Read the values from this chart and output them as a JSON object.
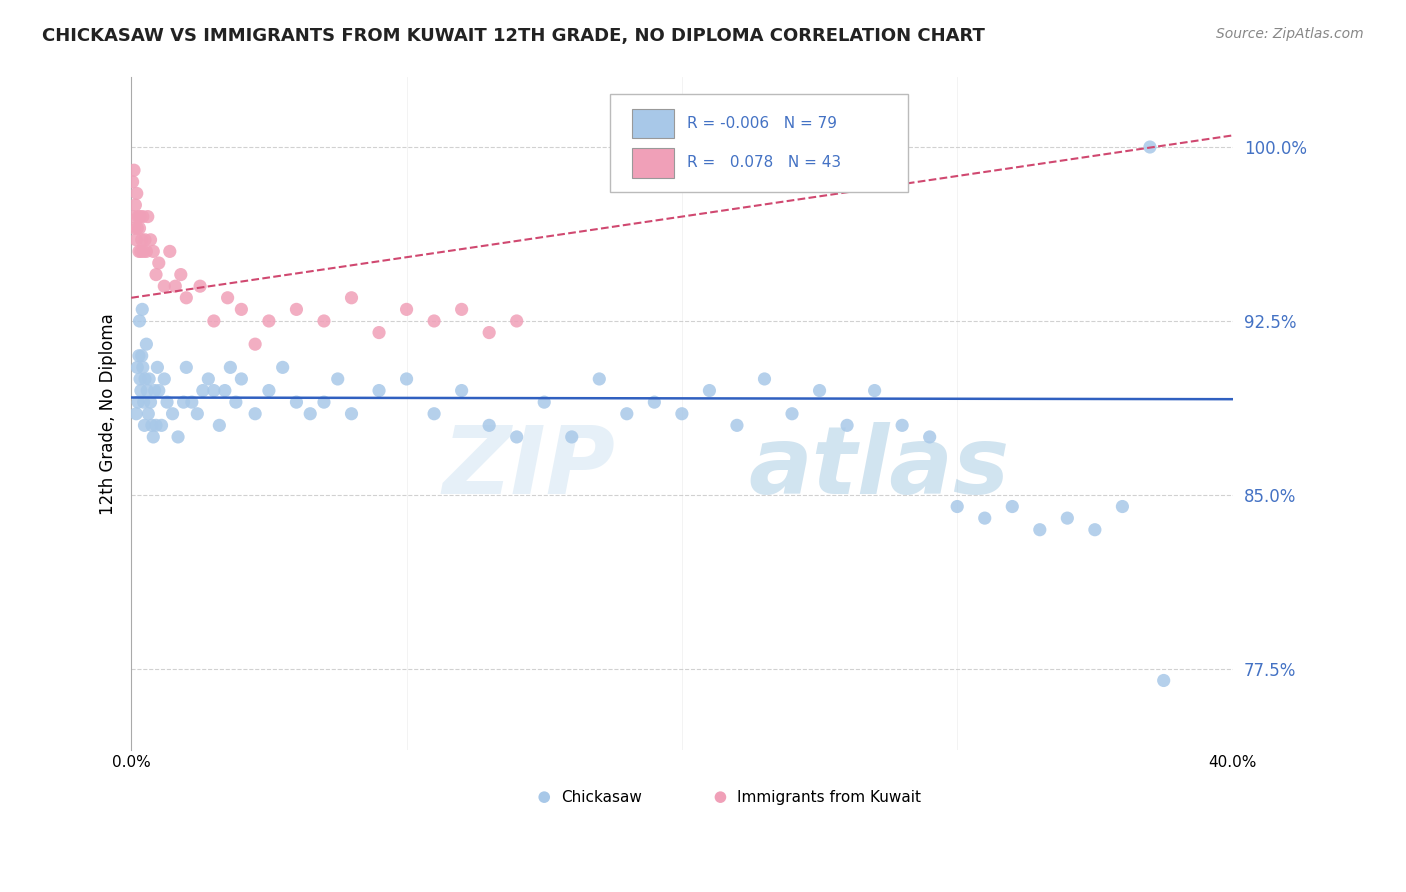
{
  "title": "CHICKASAW VS IMMIGRANTS FROM KUWAIT 12TH GRADE, NO DIPLOMA CORRELATION CHART",
  "source": "Source: ZipAtlas.com",
  "ylabel": "12th Grade, No Diploma",
  "yticks": [
    77.5,
    85.0,
    92.5,
    100.0
  ],
  "ytick_labels": [
    "77.5%",
    "85.0%",
    "92.5%",
    "100.0%"
  ],
  "xlim": [
    0.0,
    40.0
  ],
  "ylim": [
    74.0,
    103.0
  ],
  "blue_color": "#a8c8e8",
  "pink_color": "#f0a0b8",
  "trendline_blue": "#3060c0",
  "trendline_pink": "#d04870",
  "legend_text1": "R = -0.006   N = 79",
  "legend_text2": "R =   0.078   N = 43",
  "blue_N": 79,
  "pink_N": 43,
  "blue_x": [
    0.18,
    0.22,
    0.25,
    0.28,
    0.3,
    0.32,
    0.35,
    0.38,
    0.4,
    0.42,
    0.45,
    0.48,
    0.5,
    0.55,
    0.58,
    0.62,
    0.65,
    0.7,
    0.75,
    0.8,
    0.85,
    0.9,
    0.95,
    1.0,
    1.1,
    1.2,
    1.3,
    1.5,
    1.7,
    1.9,
    2.0,
    2.2,
    2.4,
    2.6,
    2.8,
    3.0,
    3.2,
    3.4,
    3.6,
    3.8,
    4.0,
    4.5,
    5.0,
    5.5,
    6.0,
    6.5,
    7.0,
    7.5,
    8.0,
    9.0,
    10.0,
    11.0,
    12.0,
    13.0,
    14.0,
    15.0,
    16.0,
    17.0,
    18.0,
    19.0,
    20.0,
    21.0,
    22.0,
    23.0,
    24.0,
    25.0,
    26.0,
    27.0,
    28.0,
    29.0,
    30.0,
    31.0,
    32.0,
    33.0,
    34.0,
    35.0,
    36.0,
    37.5,
    37.0
  ],
  "blue_y": [
    88.5,
    90.5,
    89.0,
    91.0,
    92.5,
    90.0,
    89.5,
    91.0,
    93.0,
    90.5,
    89.0,
    88.0,
    90.0,
    91.5,
    89.5,
    88.5,
    90.0,
    89.0,
    88.0,
    87.5,
    89.5,
    88.0,
    90.5,
    89.5,
    88.0,
    90.0,
    89.0,
    88.5,
    87.5,
    89.0,
    90.5,
    89.0,
    88.5,
    89.5,
    90.0,
    89.5,
    88.0,
    89.5,
    90.5,
    89.0,
    90.0,
    88.5,
    89.5,
    90.5,
    89.0,
    88.5,
    89.0,
    90.0,
    88.5,
    89.5,
    90.0,
    88.5,
    89.5,
    88.0,
    87.5,
    89.0,
    87.5,
    90.0,
    88.5,
    89.0,
    88.5,
    89.5,
    88.0,
    90.0,
    88.5,
    89.5,
    88.0,
    89.5,
    88.0,
    87.5,
    84.5,
    84.0,
    84.5,
    83.5,
    84.0,
    83.5,
    84.5,
    77.0,
    100.0
  ],
  "pink_x": [
    0.05,
    0.08,
    0.1,
    0.12,
    0.15,
    0.18,
    0.2,
    0.22,
    0.25,
    0.28,
    0.3,
    0.32,
    0.35,
    0.38,
    0.42,
    0.45,
    0.5,
    0.55,
    0.6,
    0.7,
    0.8,
    0.9,
    1.0,
    1.2,
    1.4,
    1.6,
    1.8,
    2.0,
    2.5,
    3.0,
    3.5,
    4.0,
    4.5,
    5.0,
    6.0,
    7.0,
    8.0,
    9.0,
    10.0,
    11.0,
    12.0,
    13.0,
    14.0
  ],
  "pink_y": [
    98.5,
    97.0,
    99.0,
    96.5,
    97.5,
    96.0,
    98.0,
    96.5,
    97.0,
    95.5,
    96.5,
    97.0,
    95.5,
    96.0,
    97.0,
    95.5,
    96.0,
    95.5,
    97.0,
    96.0,
    95.5,
    94.5,
    95.0,
    94.0,
    95.5,
    94.0,
    94.5,
    93.5,
    94.0,
    92.5,
    93.5,
    93.0,
    91.5,
    92.5,
    93.0,
    92.5,
    93.5,
    92.0,
    93.0,
    92.5,
    93.0,
    92.0,
    92.5
  ]
}
